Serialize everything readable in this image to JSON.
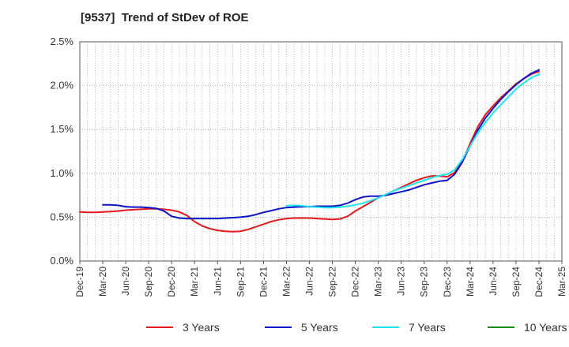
{
  "chart_data": {
    "type": "line",
    "title": "[9537]  Trend of StDev of ROE",
    "xlabel": "",
    "ylabel": "",
    "x_ticks": [
      "Dec-19",
      "Mar-20",
      "Jun-20",
      "Sep-20",
      "Dec-20",
      "Mar-21",
      "Jun-21",
      "Sep-21",
      "Dec-21",
      "Mar-22",
      "Jun-22",
      "Sep-22",
      "Dec-22",
      "Mar-23",
      "Jun-23",
      "Sep-23",
      "Dec-23",
      "Mar-24",
      "Jun-24",
      "Sep-24",
      "Dec-24",
      "Mar-25"
    ],
    "y_ticks": [
      "0.0%",
      "0.5%",
      "1.0%",
      "1.5%",
      "2.0%",
      "2.5%"
    ],
    "ylim": [
      0,
      2.5
    ],
    "grid": true,
    "legend_position": "bottom",
    "series": [
      {
        "name": "3 Years",
        "color": "#e31a1c",
        "points": [
          [
            "Dec-19",
            0.56
          ],
          [
            "Jan-20",
            0.555
          ],
          [
            "Feb-20",
            0.555
          ],
          [
            "Mar-20",
            0.56
          ],
          [
            "Apr-20",
            0.565
          ],
          [
            "May-20",
            0.57
          ],
          [
            "Jun-20",
            0.58
          ],
          [
            "Jul-20",
            0.585
          ],
          [
            "Aug-20",
            0.59
          ],
          [
            "Sep-20",
            0.595
          ],
          [
            "Oct-20",
            0.595
          ],
          [
            "Nov-20",
            0.59
          ],
          [
            "Dec-20",
            0.58
          ],
          [
            "Jan-21",
            0.56
          ],
          [
            "Feb-21",
            0.52
          ],
          [
            "Mar-21",
            0.45
          ],
          [
            "Apr-21",
            0.4
          ],
          [
            "May-21",
            0.37
          ],
          [
            "Jun-21",
            0.35
          ],
          [
            "Jul-21",
            0.34
          ],
          [
            "Aug-21",
            0.335
          ],
          [
            "Sep-21",
            0.34
          ],
          [
            "Oct-21",
            0.36
          ],
          [
            "Nov-21",
            0.39
          ],
          [
            "Dec-21",
            0.42
          ],
          [
            "Jan-22",
            0.45
          ],
          [
            "Feb-22",
            0.47
          ],
          [
            "Mar-22",
            0.485
          ],
          [
            "Apr-22",
            0.49
          ],
          [
            "May-22",
            0.49
          ],
          [
            "Jun-22",
            0.49
          ],
          [
            "Jul-22",
            0.485
          ],
          [
            "Aug-22",
            0.48
          ],
          [
            "Sep-22",
            0.475
          ],
          [
            "Oct-22",
            0.48
          ],
          [
            "Nov-22",
            0.51
          ],
          [
            "Dec-22",
            0.57
          ],
          [
            "Jan-23",
            0.62
          ],
          [
            "Feb-23",
            0.67
          ],
          [
            "Mar-23",
            0.72
          ],
          [
            "Apr-23",
            0.76
          ],
          [
            "May-23",
            0.8
          ],
          [
            "Jun-23",
            0.84
          ],
          [
            "Jul-23",
            0.88
          ],
          [
            "Aug-23",
            0.92
          ],
          [
            "Sep-23",
            0.95
          ],
          [
            "Oct-23",
            0.97
          ],
          [
            "Nov-23",
            0.97
          ],
          [
            "Dec-23",
            0.96
          ],
          [
            "Jan-24",
            1.01
          ],
          [
            "Feb-24",
            1.14
          ],
          [
            "Mar-24",
            1.34
          ],
          [
            "Apr-24",
            1.53
          ],
          [
            "May-24",
            1.67
          ],
          [
            "Jun-24",
            1.77
          ],
          [
            "Jul-24",
            1.86
          ],
          [
            "Aug-24",
            1.94
          ],
          [
            "Sep-24",
            2.02
          ],
          [
            "Oct-24",
            2.08
          ],
          [
            "Nov-24",
            2.13
          ],
          [
            "Dec-24",
            2.16
          ]
        ]
      },
      {
        "name": "5 Years",
        "color": "#0d14c8",
        "points": [
          [
            "Mar-20",
            0.64
          ],
          [
            "Apr-20",
            0.64
          ],
          [
            "May-20",
            0.635
          ],
          [
            "Jun-20",
            0.62
          ],
          [
            "Jul-20",
            0.615
          ],
          [
            "Aug-20",
            0.615
          ],
          [
            "Sep-20",
            0.61
          ],
          [
            "Oct-20",
            0.6
          ],
          [
            "Nov-20",
            0.57
          ],
          [
            "Dec-20",
            0.51
          ],
          [
            "Jan-21",
            0.49
          ],
          [
            "Feb-21",
            0.485
          ],
          [
            "Mar-21",
            0.485
          ],
          [
            "Apr-21",
            0.485
          ],
          [
            "May-21",
            0.485
          ],
          [
            "Jun-21",
            0.485
          ],
          [
            "Jul-21",
            0.49
          ],
          [
            "Aug-21",
            0.495
          ],
          [
            "Sep-21",
            0.5
          ],
          [
            "Oct-21",
            0.51
          ],
          [
            "Nov-21",
            0.53
          ],
          [
            "Dec-21",
            0.555
          ],
          [
            "Jan-22",
            0.575
          ],
          [
            "Feb-22",
            0.595
          ],
          [
            "Mar-22",
            0.61
          ],
          [
            "Apr-22",
            0.615
          ],
          [
            "May-22",
            0.62
          ],
          [
            "Jun-22",
            0.62
          ],
          [
            "Jul-22",
            0.625
          ],
          [
            "Aug-22",
            0.625
          ],
          [
            "Sep-22",
            0.625
          ],
          [
            "Oct-22",
            0.635
          ],
          [
            "Nov-22",
            0.66
          ],
          [
            "Dec-22",
            0.7
          ],
          [
            "Jan-23",
            0.73
          ],
          [
            "Feb-23",
            0.74
          ],
          [
            "Mar-23",
            0.74
          ],
          [
            "Apr-23",
            0.75
          ],
          [
            "May-23",
            0.77
          ],
          [
            "Jun-23",
            0.79
          ],
          [
            "Jul-23",
            0.81
          ],
          [
            "Aug-23",
            0.84
          ],
          [
            "Sep-23",
            0.87
          ],
          [
            "Oct-23",
            0.89
          ],
          [
            "Nov-23",
            0.91
          ],
          [
            "Dec-23",
            0.92
          ],
          [
            "Jan-24",
            0.99
          ],
          [
            "Feb-24",
            1.13
          ],
          [
            "Mar-24",
            1.31
          ],
          [
            "Apr-24",
            1.49
          ],
          [
            "May-24",
            1.63
          ],
          [
            "Jun-24",
            1.74
          ],
          [
            "Jul-24",
            1.84
          ],
          [
            "Aug-24",
            1.93
          ],
          [
            "Sep-24",
            2.01
          ],
          [
            "Oct-24",
            2.08
          ],
          [
            "Nov-24",
            2.14
          ],
          [
            "Dec-24",
            2.18
          ]
        ]
      },
      {
        "name": "7 Years",
        "color": "#1ee6f0",
        "points": [
          [
            "Mar-22",
            0.63
          ],
          [
            "Apr-22",
            0.635
          ],
          [
            "May-22",
            0.63
          ],
          [
            "Jun-22",
            0.62
          ],
          [
            "Jul-22",
            0.615
          ],
          [
            "Aug-22",
            0.61
          ],
          [
            "Sep-22",
            0.61
          ],
          [
            "Oct-22",
            0.615
          ],
          [
            "Nov-22",
            0.625
          ],
          [
            "Dec-22",
            0.64
          ],
          [
            "Jan-23",
            0.66
          ],
          [
            "Feb-23",
            0.69
          ],
          [
            "Mar-23",
            0.72
          ],
          [
            "Apr-23",
            0.76
          ],
          [
            "May-23",
            0.8
          ],
          [
            "Jun-23",
            0.83
          ],
          [
            "Jul-23",
            0.86
          ],
          [
            "Aug-23",
            0.89
          ],
          [
            "Sep-23",
            0.92
          ],
          [
            "Oct-23",
            0.95
          ],
          [
            "Nov-23",
            0.975
          ],
          [
            "Dec-23",
            0.99
          ],
          [
            "Jan-24",
            1.04
          ],
          [
            "Feb-24",
            1.16
          ],
          [
            "Mar-24",
            1.31
          ],
          [
            "Apr-24",
            1.46
          ],
          [
            "May-24",
            1.58
          ],
          [
            "Jun-24",
            1.69
          ],
          [
            "Jul-24",
            1.78
          ],
          [
            "Aug-24",
            1.87
          ],
          [
            "Sep-24",
            1.96
          ],
          [
            "Oct-24",
            2.03
          ],
          [
            "Nov-24",
            2.09
          ],
          [
            "Dec-24",
            2.13
          ]
        ]
      },
      {
        "name": "10 Years",
        "color": "#1a8a1a",
        "points": []
      }
    ]
  }
}
